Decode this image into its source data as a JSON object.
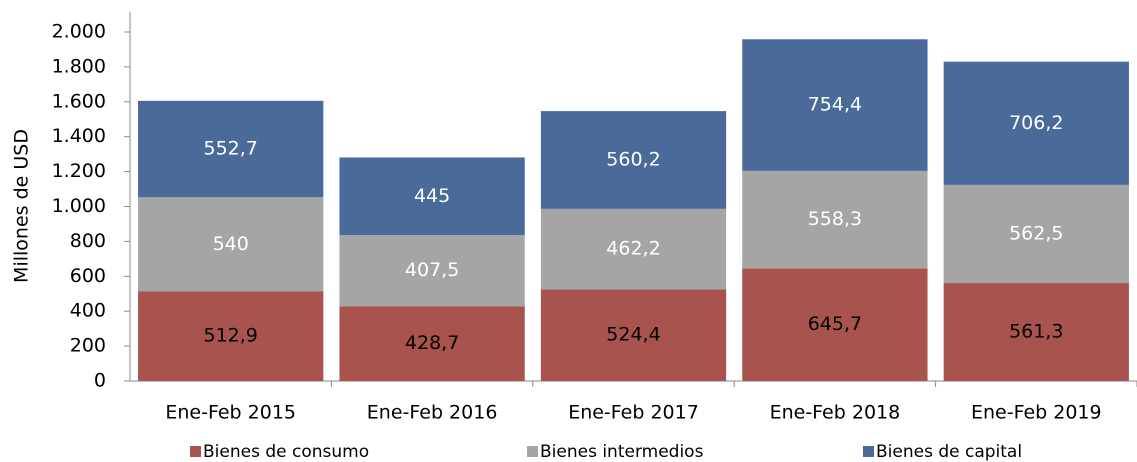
{
  "chart_data": {
    "type": "stacked_bar",
    "y_axis_label": "Millones de  USD",
    "categories": [
      "Ene-Feb 2015",
      "Ene-Feb 2016",
      "Ene-Feb 2017",
      "Ene-Feb 2018",
      "Ene-Feb 2019"
    ],
    "series": [
      {
        "name": "Bienes de consumo",
        "color": "#a9534f",
        "label_color": "#000000",
        "values": [
          512.9,
          428.7,
          524.4,
          645.7,
          561.3
        ],
        "value_labels": [
          "512,9",
          "428,7",
          "524,4",
          "645,7",
          "561,3"
        ]
      },
      {
        "name": "Bienes intermedios",
        "color": "#a5a5a5",
        "label_color": "#ffffff",
        "values": [
          540,
          407.5,
          462.2,
          558.3,
          562.5
        ],
        "value_labels": [
          "540",
          "407,5",
          "462,2",
          "558,3",
          "562,5"
        ]
      },
      {
        "name": "Bienes de capital",
        "color": "#4a6b9a",
        "label_color": "#ffffff",
        "values": [
          552.7,
          445,
          560.2,
          754.4,
          706.2
        ],
        "value_labels": [
          "552,7",
          "445",
          "560,2",
          "754,4",
          "706,2"
        ]
      }
    ],
    "ylim": [
      0,
      2000
    ],
    "yticks": [
      0,
      200,
      400,
      600,
      800,
      {
        "value": 1000,
        "label": "1.000"
      },
      {
        "value": 1200,
        "label": "1.200"
      },
      {
        "value": 1400,
        "label": "1.400"
      },
      {
        "value": 1600,
        "label": "1.600"
      },
      {
        "value": 1800,
        "label": "1.800"
      },
      {
        "value": 2000,
        "label": "2.000"
      }
    ],
    "legend": "bottom"
  }
}
